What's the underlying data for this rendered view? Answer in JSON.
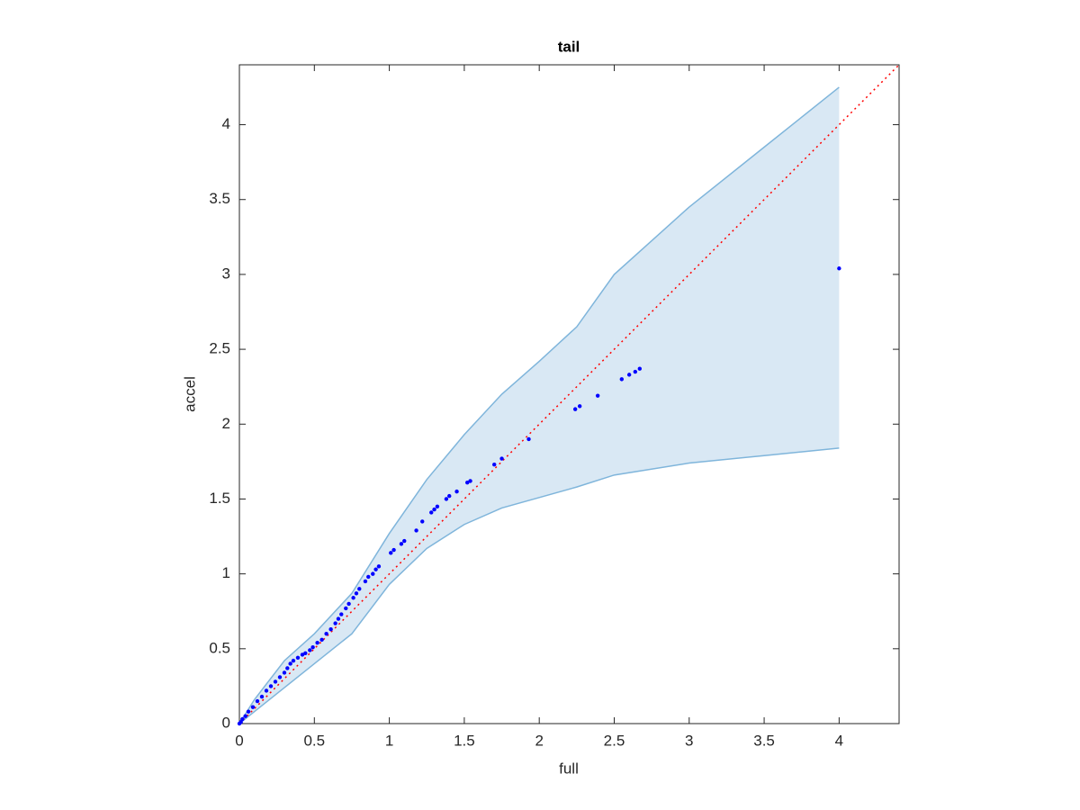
{
  "chart_data": {
    "type": "scatter",
    "title": "tail",
    "x_label": "full",
    "y_label": "accel",
    "xlim": [
      0,
      4.4
    ],
    "ylim": [
      0,
      4.4
    ],
    "xticks": [
      0,
      0.5,
      1,
      1.5,
      2,
      2.5,
      3,
      3.5,
      4
    ],
    "yticks": [
      0,
      0.5,
      1,
      1.5,
      2,
      2.5,
      3,
      3.5,
      4
    ],
    "grid": false,
    "series": [
      {
        "color": "#0000ff",
        "x": [
          0,
          0.01,
          0.02,
          0.04,
          0.06,
          0.09,
          0.12,
          0.15,
          0.18,
          0.21,
          0.24,
          0.27,
          0.3,
          0.32,
          0.34,
          0.36,
          0.39,
          0.42,
          0.44,
          0.47,
          0.49,
          0.52,
          0.55,
          0.58,
          0.61,
          0.64,
          0.66,
          0.68,
          0.71,
          0.73,
          0.76,
          0.78,
          0.8,
          0.84,
          0.86,
          0.89,
          0.91,
          0.93,
          1.01,
          1.03,
          1.08,
          1.1,
          1.18,
          1.22,
          1.28,
          1.3,
          1.32,
          1.38,
          1.4,
          1.45,
          1.52,
          1.54,
          1.7,
          1.75,
          1.93,
          2.24,
          2.27,
          2.39,
          2.55,
          2.6,
          2.64,
          2.67,
          4.0
        ],
        "values": [
          0,
          0.01,
          0.03,
          0.05,
          0.08,
          0.11,
          0.15,
          0.18,
          0.22,
          0.25,
          0.28,
          0.31,
          0.34,
          0.37,
          0.4,
          0.42,
          0.44,
          0.46,
          0.47,
          0.49,
          0.51,
          0.54,
          0.56,
          0.6,
          0.63,
          0.67,
          0.7,
          0.73,
          0.77,
          0.8,
          0.84,
          0.87,
          0.9,
          0.95,
          0.98,
          1.0,
          1.03,
          1.05,
          1.14,
          1.16,
          1.2,
          1.22,
          1.29,
          1.35,
          1.41,
          1.43,
          1.45,
          1.5,
          1.52,
          1.55,
          1.61,
          1.62,
          1.73,
          1.77,
          1.9,
          2.1,
          2.12,
          2.19,
          2.3,
          2.33,
          2.35,
          2.37,
          3.04
        ]
      }
    ],
    "band": {
      "color": "#7fb5db",
      "fill": "#d9e8f4",
      "x": [
        0,
        0.1,
        0.3,
        0.5,
        0.75,
        1.0,
        1.25,
        1.5,
        1.75,
        2.0,
        2.25,
        2.5,
        3.0,
        3.5,
        4.0
      ],
      "upper": [
        0,
        0.16,
        0.42,
        0.6,
        0.87,
        1.27,
        1.63,
        1.93,
        2.2,
        2.42,
        2.65,
        3.0,
        3.45,
        3.85,
        4.25
      ],
      "lower": [
        0,
        0.08,
        0.24,
        0.4,
        0.6,
        0.93,
        1.17,
        1.33,
        1.44,
        1.51,
        1.58,
        1.66,
        1.74,
        1.79,
        1.84
      ]
    },
    "reference_line": {
      "color": "#ff0000",
      "x": [
        0,
        4.4
      ],
      "values": [
        0,
        4.4
      ]
    }
  }
}
